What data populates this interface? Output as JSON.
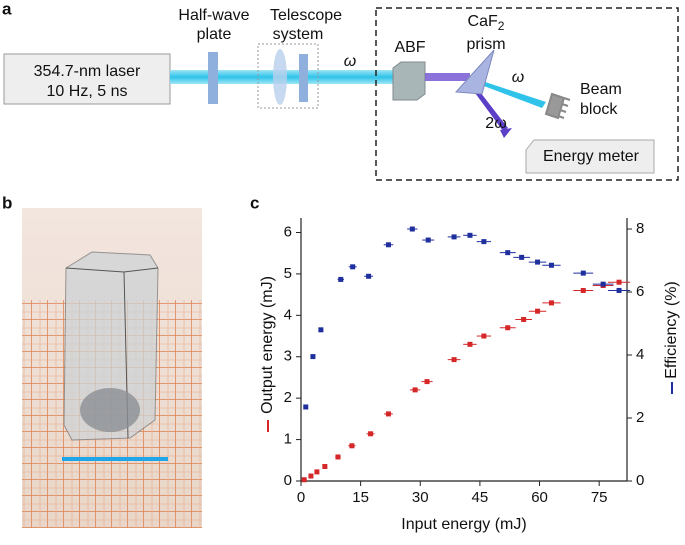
{
  "panels": {
    "a": "a",
    "b": "b",
    "c": "c"
  },
  "diagram": {
    "laser": [
      "354.7-nm laser",
      "10 Hz, 5 ns"
    ],
    "half_wave": [
      "Half-wave",
      "plate"
    ],
    "telescope": [
      "Telescope",
      "system"
    ],
    "omega_in": "ω",
    "abf": "ABF",
    "prism": {
      "base": "CaF",
      "subscript": "2",
      "line2": "prism"
    },
    "omega_out": "ω",
    "two_omega": "2ω",
    "beam_block": [
      "Beam",
      "block"
    ],
    "energy_meter": "Energy meter"
  },
  "chart_data": {
    "type": "scatter",
    "xlabel": "Input energy (mJ)",
    "ylabel": "Output energy (mJ)",
    "y2label": "Efficiency (%)",
    "xlim": [
      0,
      82
    ],
    "xticks": [
      0,
      15,
      30,
      45,
      60,
      75
    ],
    "ylim": [
      0,
      6.35
    ],
    "yticks": [
      0,
      1,
      2,
      3,
      4,
      5,
      6
    ],
    "y2lim": [
      0,
      8.35
    ],
    "y2ticks": [
      0,
      2,
      4,
      6,
      8
    ],
    "series": [
      {
        "name": "Output energy",
        "color": "#d62728",
        "x": [
          0.8,
          2.5,
          4,
          6,
          9.3,
          12.8,
          17.5,
          22,
          28.7,
          31.7,
          38.5,
          42.5,
          46,
          52,
          56,
          59.5,
          63,
          71,
          76,
          80
        ],
        "xerr": [
          0.3,
          0.4,
          0.5,
          0.6,
          0.7,
          0.9,
          1.0,
          1.1,
          1.3,
          1.4,
          1.6,
          1.7,
          1.8,
          2.0,
          2.1,
          2.2,
          2.3,
          2.5,
          2.6,
          2.8
        ],
        "values": [
          0.03,
          0.12,
          0.22,
          0.35,
          0.58,
          0.85,
          1.14,
          1.62,
          2.2,
          2.4,
          2.93,
          3.3,
          3.5,
          3.7,
          3.9,
          4.1,
          4.3,
          4.6,
          4.72,
          4.8
        ]
      },
      {
        "name": "Efficiency",
        "color": "#1f2f9e",
        "axis": "y2",
        "x": [
          1.2,
          3,
          5,
          10,
          13,
          17,
          22,
          28,
          32,
          38.5,
          42.5,
          46,
          52,
          55.5,
          59.5,
          63,
          71,
          76,
          80
        ],
        "xerr": [
          0.3,
          0.5,
          0.6,
          0.8,
          1.0,
          1.1,
          1.2,
          1.3,
          1.5,
          1.6,
          1.7,
          1.8,
          2.0,
          2.1,
          2.2,
          2.3,
          2.5,
          2.6,
          2.8
        ],
        "values": [
          2.35,
          3.95,
          4.8,
          6.4,
          6.8,
          6.5,
          7.5,
          8.0,
          7.65,
          7.75,
          7.8,
          7.6,
          7.25,
          7.1,
          6.95,
          6.85,
          6.6,
          6.25,
          6.05
        ]
      }
    ]
  }
}
